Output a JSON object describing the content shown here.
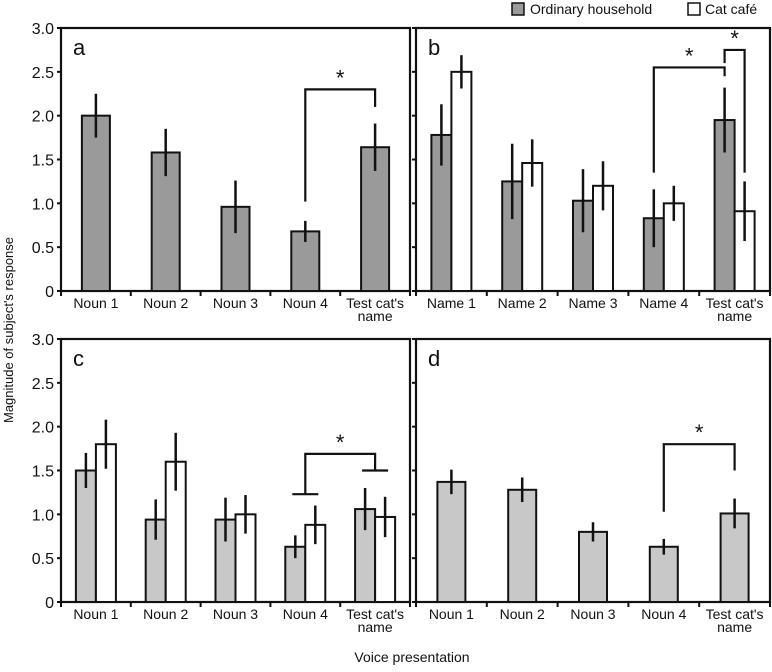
{
  "figure": {
    "ylabel": "Magnitude of subject's response",
    "xlabel": "Voice presentation",
    "legend": [
      {
        "name": "Ordinary household",
        "color": "#9a9a9a"
      },
      {
        "name": "Cat café",
        "color": "#ffffff"
      }
    ],
    "yticks": [
      "0",
      "0.5",
      "1.0",
      "1.5",
      "2.0",
      "2.5",
      "3.0"
    ],
    "significance_mark": "*"
  },
  "chart_data": [
    {
      "type": "bar",
      "panel": "a",
      "ylim": [
        0,
        3.0
      ],
      "bar_color": "#9a9a9a",
      "categories": [
        "Noun 1",
        "Noun 2",
        "Noun 3",
        "Noun 4",
        "Test cat's\nname"
      ],
      "series": [
        {
          "values": [
            2.0,
            1.58,
            0.96,
            0.68,
            1.64
          ],
          "errors": [
            0.25,
            0.27,
            0.3,
            0.12,
            0.27
          ]
        }
      ],
      "significance": [
        {
          "from": [
            3,
            0
          ],
          "to": [
            4,
            0
          ],
          "top": 2.3,
          "from_end": 1.02,
          "to_end": 2.1
        }
      ]
    },
    {
      "type": "bar",
      "panel": "b",
      "ylim": [
        0,
        3.0
      ],
      "bar_color": "#9a9a9a",
      "categories": [
        "Name 1",
        "Name 2",
        "Name 3",
        "Name 4",
        "Test cat's\nname"
      ],
      "series": [
        {
          "name": "Ordinary household",
          "values": [
            1.78,
            1.25,
            1.03,
            0.83,
            1.95
          ],
          "errors": [
            0.35,
            0.43,
            0.36,
            0.33,
            0.37
          ]
        },
        {
          "name": "Cat café",
          "values": [
            2.5,
            1.46,
            1.2,
            1.0,
            0.91
          ],
          "errors": [
            0.19,
            0.27,
            0.28,
            0.2,
            0.34
          ]
        }
      ],
      "significance": [
        {
          "from": [
            3,
            0
          ],
          "to": [
            4,
            0
          ],
          "top": 2.55,
          "from_end": 1.35,
          "to_end": 2.45
        },
        {
          "from": [
            4,
            0
          ],
          "to": [
            4,
            1
          ],
          "top": 2.75,
          "from_end": 2.6,
          "to_end": 1.35
        }
      ]
    },
    {
      "type": "bar",
      "panel": "c",
      "ylim": [
        0,
        3.0
      ],
      "bar_color": "#c8c8c8",
      "categories": [
        "Noun 1",
        "Noun 2",
        "Noun 3",
        "Noun 4",
        "Test cat's\nname"
      ],
      "series": [
        {
          "name": "Ordinary household",
          "values": [
            1.5,
            0.94,
            0.94,
            0.63,
            1.06
          ],
          "errors": [
            0.2,
            0.23,
            0.25,
            0.13,
            0.24
          ]
        },
        {
          "name": "Cat café",
          "values": [
            1.8,
            1.6,
            1.0,
            0.88,
            0.97
          ],
          "errors": [
            0.28,
            0.33,
            0.22,
            0.22,
            0.23
          ]
        }
      ],
      "significance": [
        {
          "from": [
            3,
            -1
          ],
          "to": [
            4,
            -1
          ],
          "top": 1.69,
          "from_end": 1.23,
          "to_end": 1.5,
          "caps": true
        }
      ]
    },
    {
      "type": "bar",
      "panel": "d",
      "ylim": [
        0,
        3.0
      ],
      "bar_color": "#c8c8c8",
      "categories": [
        "Noun 1",
        "Noun 2",
        "Noun 3",
        "Noun 4",
        "Test cat's\nname"
      ],
      "series": [
        {
          "values": [
            1.37,
            1.28,
            0.8,
            0.63,
            1.01
          ],
          "errors": [
            0.14,
            0.14,
            0.11,
            0.09,
            0.17
          ]
        }
      ],
      "significance": [
        {
          "from": [
            3,
            0
          ],
          "to": [
            4,
            0
          ],
          "top": 1.8,
          "from_end": 1.03,
          "to_end": 1.5
        }
      ]
    }
  ]
}
